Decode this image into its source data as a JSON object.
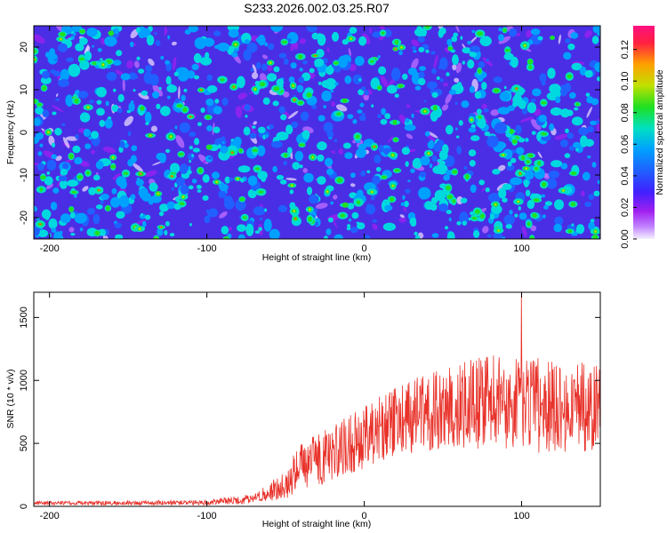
{
  "title": "S233.2026.002.03.25.R07",
  "chart_data": [
    {
      "type": "heatmap",
      "xlabel": "Height of straight line (km)",
      "ylabel": "Frequency (Hz)",
      "xlim": [
        -210,
        150
      ],
      "ylim": [
        -25,
        25
      ],
      "xticks": [
        -200,
        -100,
        0,
        100
      ],
      "yticks": [
        -20,
        -10,
        0,
        10,
        20
      ],
      "colorbar": {
        "label": "Normalized spectral amplitude",
        "range": [
          0,
          0.135
        ],
        "ticks": [
          "0.00",
          "0.02",
          "0.04",
          "0.06",
          "0.08",
          "0.10",
          "0.12"
        ],
        "colors": [
          "#f4f0ff",
          "#a020f0",
          "#3030ff",
          "#00a0ff",
          "#00e0c0",
          "#20e020",
          "#c0e000",
          "#ffa000",
          "#ff2040",
          "#ff1080"
        ]
      }
    },
    {
      "type": "line",
      "xlabel": "Height of straight line (km)",
      "ylabel": "SNR (10 * v/v)",
      "xlim": [
        -210,
        150
      ],
      "ylim": [
        0,
        1700
      ],
      "xticks": [
        -200,
        -100,
        0,
        100
      ],
      "yticks": [
        0,
        500,
        1000,
        1500
      ],
      "color": "#e8322a",
      "envelope": [
        {
          "x": -210,
          "mean": 25,
          "spread": 15
        },
        {
          "x": -100,
          "mean": 30,
          "spread": 20
        },
        {
          "x": -70,
          "mean": 60,
          "spread": 40
        },
        {
          "x": -50,
          "mean": 180,
          "spread": 120
        },
        {
          "x": -40,
          "mean": 320,
          "spread": 200
        },
        {
          "x": -20,
          "mean": 420,
          "spread": 220
        },
        {
          "x": 0,
          "mean": 550,
          "spread": 250
        },
        {
          "x": 20,
          "mean": 680,
          "spread": 280
        },
        {
          "x": 50,
          "mean": 780,
          "spread": 320
        },
        {
          "x": 80,
          "mean": 830,
          "spread": 380
        },
        {
          "x": 110,
          "mean": 800,
          "spread": 380
        },
        {
          "x": 150,
          "mean": 780,
          "spread": 350
        }
      ],
      "peak": {
        "x": 100,
        "y": 1700
      }
    }
  ]
}
